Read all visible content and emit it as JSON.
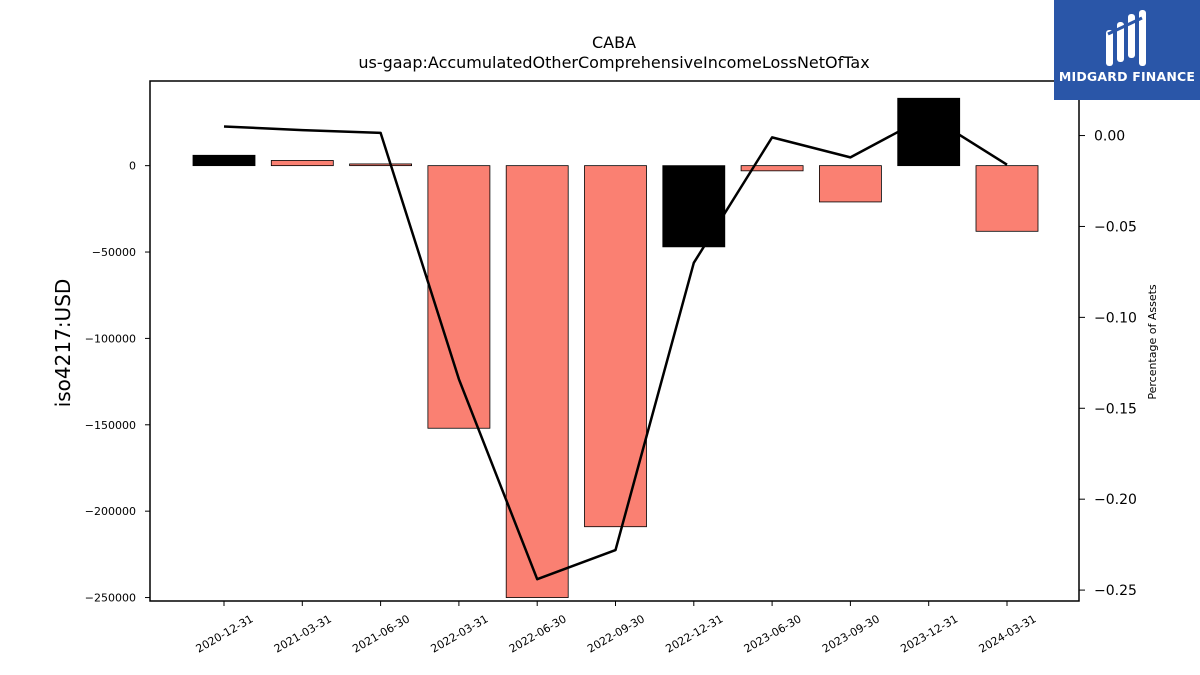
{
  "chart_data": {
    "type": "bar",
    "title": "CABA",
    "subtitle": "us-gaap:AccumulatedOtherComprehensiveIncomeLossNetOfTax",
    "xlabel": "",
    "ylabel": "iso4217:USD",
    "y2label": "Percentage of Assets",
    "categories": [
      "2020-12-31",
      "2021-03-31",
      "2021-06-30",
      "2022-03-31",
      "2022-06-30",
      "2022-09-30",
      "2022-12-31",
      "2023-06-30",
      "2023-09-30",
      "2023-12-31",
      "2024-03-31"
    ],
    "values": [
      6000,
      3000,
      1000,
      -152000,
      -250000,
      -209000,
      -47000,
      -3000,
      -21000,
      39000,
      -38000
    ],
    "bar_colors": [
      "#000000",
      "#fa8072",
      "#fa8072",
      "#fa8072",
      "#fa8072",
      "#fa8072",
      "#000000",
      "#fa8072",
      "#fa8072",
      "#000000",
      "#fa8072"
    ],
    "ylim": [
      -252000,
      49000
    ],
    "yticks": [
      0,
      -50000,
      -100000,
      -150000,
      -200000,
      -250000
    ],
    "ytick_labels": [
      "0",
      "−50000",
      "−100000",
      "−150000",
      "−200000",
      "−250000"
    ],
    "line_series": {
      "name": "Percentage of Assets",
      "color": "#000000",
      "values": [
        0.005,
        0.003,
        0.0015,
        -0.134,
        -0.244,
        -0.228,
        -0.07,
        -0.001,
        -0.012,
        0.011,
        -0.016
      ]
    },
    "y2lim": [
      -0.256,
      0.03
    ],
    "y2ticks": [
      0.0,
      -0.05,
      -0.1,
      -0.15,
      -0.2,
      -0.25
    ],
    "y2tick_labels": [
      "0.00",
      "−0.05",
      "−0.10",
      "−0.15",
      "−0.20",
      "−0.25"
    ],
    "grid": false,
    "legend": "none"
  },
  "logo": {
    "text": "MIDGARD FINANCE",
    "bg_color": "#2a56a8",
    "text_color": "#ffffff"
  }
}
